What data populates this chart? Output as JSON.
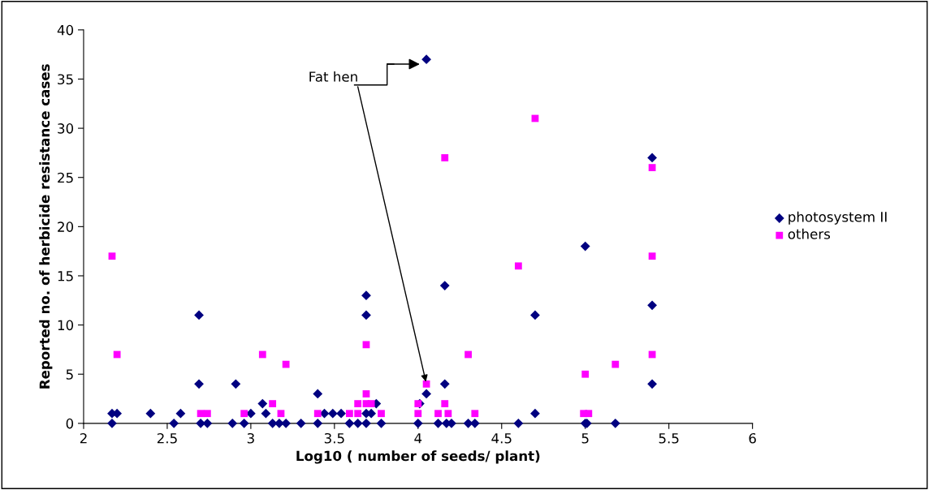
{
  "chart_data": {
    "type": "scatter",
    "xlabel": "Log10 ( number of seeds/ plant)",
    "ylabel": "Reported no. of herbicide resistance cases",
    "xlim": [
      2,
      6
    ],
    "xticks": [
      2,
      {
        "value": 2.5,
        "label": "2.5"
      },
      3,
      {
        "value": 3.5,
        "label": "3.5"
      },
      4,
      {
        "value": 4.5,
        "label": "4.5"
      },
      5,
      {
        "value": 5.5,
        "label": "5.5"
      },
      6
    ],
    "ylim": [
      0,
      40
    ],
    "yticks": [
      0,
      5,
      10,
      15,
      20,
      25,
      30,
      35,
      40
    ],
    "grid": false,
    "legend": "right",
    "series": [
      {
        "name": "photosystem II",
        "color": "#000080",
        "marker": "diamond",
        "x": [
          2.17,
          2.17,
          2.2,
          2.4,
          2.54,
          2.58,
          2.69,
          2.69,
          2.7,
          2.74,
          2.89,
          2.91,
          2.96,
          3.0,
          3.07,
          3.09,
          3.13,
          3.17,
          3.21,
          3.3,
          3.4,
          3.4,
          3.44,
          3.49,
          3.54,
          3.59,
          3.64,
          3.69,
          3.69,
          3.69,
          3.69,
          3.72,
          3.75,
          3.78,
          4.01,
          4.0,
          4.05,
          4.05,
          4.12,
          4.16,
          4.16,
          4.17,
          4.2,
          4.3,
          4.34,
          4.6,
          4.7,
          4.7,
          5.0,
          5.0,
          5.01,
          5.18,
          5.4,
          5.4,
          5.4
        ],
        "values": [
          1,
          0,
          1,
          1,
          0,
          1,
          11,
          4,
          0,
          0,
          0,
          4,
          0,
          1,
          2,
          1,
          0,
          0,
          0,
          0,
          3,
          0,
          1,
          1,
          1,
          0,
          0,
          13,
          11,
          1,
          0,
          1,
          2,
          0,
          2,
          0,
          3,
          37,
          0,
          14,
          4,
          0,
          0,
          0,
          0,
          0,
          1,
          11,
          18,
          0,
          0,
          0,
          27,
          12,
          4
        ]
      },
      {
        "name": "others",
        "color": "#ff00ff",
        "marker": "square",
        "x": [
          2.17,
          2.2,
          2.7,
          2.74,
          2.96,
          3.07,
          3.13,
          3.18,
          3.21,
          3.4,
          3.59,
          3.64,
          3.64,
          3.69,
          3.69,
          3.69,
          3.72,
          3.78,
          4.0,
          4.0,
          4.05,
          4.12,
          4.16,
          4.16,
          4.18,
          4.3,
          4.34,
          4.6,
          4.7,
          5.0,
          4.99,
          5.02,
          5.18,
          5.4,
          5.4,
          5.4
        ],
        "values": [
          17,
          7,
          1,
          1,
          1,
          7,
          2,
          1,
          6,
          1,
          1,
          2,
          1,
          2,
          3,
          8,
          2,
          1,
          2,
          1,
          4,
          1,
          2,
          27,
          1,
          7,
          1,
          16,
          31,
          5,
          1,
          1,
          6,
          26,
          17,
          7
        ]
      }
    ],
    "annotations": [
      {
        "text": "Fat hen",
        "x": 4.05,
        "y": 4
      }
    ]
  }
}
